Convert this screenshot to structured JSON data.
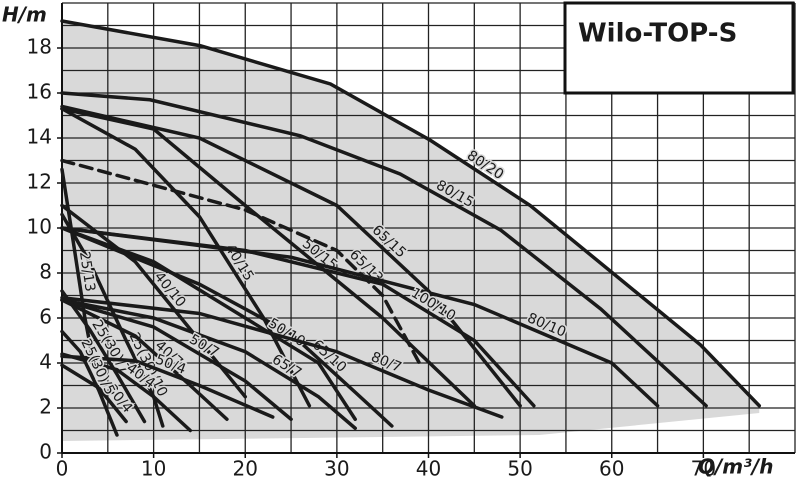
{
  "chart_data": {
    "type": "line",
    "title": "Wilo-TOP-S",
    "xlabel": "Q/m³/h",
    "ylabel": "H/m",
    "xlim": [
      0,
      80
    ],
    "ylim": [
      0,
      20
    ],
    "xticks": [
      0,
      10,
      20,
      30,
      40,
      50,
      60,
      70
    ],
    "yticks": [
      0,
      2,
      4,
      6,
      8,
      10,
      12,
      14,
      16,
      18
    ],
    "xgrid": [
      0,
      5,
      10,
      15,
      20,
      25,
      30,
      35,
      40,
      45,
      50,
      55,
      60,
      65,
      70,
      75,
      80
    ],
    "ygrid": [
      0,
      1,
      2,
      3,
      4,
      5,
      6,
      7,
      8,
      9,
      10,
      11,
      12,
      13,
      14,
      15,
      16,
      17,
      18,
      19,
      20
    ],
    "grid": true,
    "color": "#1a1a1a",
    "fill_color": "#d9d9d9",
    "series": [
      {
        "name": "80/20",
        "x": [
          0,
          15.1,
          29.3,
          40.2,
          51.1,
          61,
          69.7,
          76.1
        ],
        "values": [
          19.2,
          18.1,
          16.4,
          13.9,
          11,
          7.7,
          4.8,
          2.1
        ]
      },
      {
        "name": "80/15",
        "x": [
          0,
          9.6,
          26,
          36.9,
          47.9,
          58.8,
          70.3
        ],
        "values": [
          16.0,
          15.7,
          14.1,
          12.4,
          9.9,
          6.4,
          2.1
        ]
      },
      {
        "name": "65/15",
        "x": [
          0,
          15,
          30,
          40,
          50
        ],
        "values": [
          15.4,
          14,
          11,
          7.2,
          2.1
        ]
      },
      {
        "name": "50/15",
        "x": [
          0,
          10,
          20,
          35,
          45
        ],
        "values": [
          15.3,
          14.4,
          11,
          6,
          2.1
        ]
      },
      {
        "name": "40/15",
        "x": [
          0,
          8,
          15,
          22,
          27
        ],
        "values": [
          15.3,
          13.5,
          10.5,
          6,
          2.1
        ]
      },
      {
        "name": "65/13",
        "dashed": true,
        "x": [
          0,
          20,
          30,
          35,
          39
        ],
        "values": [
          13,
          10.8,
          9,
          7,
          4
        ]
      },
      {
        "name": "80/10",
        "x": [
          0,
          25,
          45,
          60,
          65
        ],
        "values": [
          10,
          8.7,
          6.6,
          4,
          2.1
        ]
      },
      {
        "name": "100/10",
        "x": [
          0,
          20,
          35,
          45,
          51.5
        ],
        "values": [
          10,
          9,
          7.5,
          5,
          2.1
        ]
      },
      {
        "name": "65/10",
        "x": [
          0,
          15,
          25,
          32,
          36
        ],
        "values": [
          10,
          7.5,
          5.3,
          2.7,
          1.2
        ]
      },
      {
        "name": "50/10",
        "x": [
          0,
          10,
          20,
          28,
          32
        ],
        "values": [
          10,
          8.5,
          6,
          4,
          1.5
        ]
      },
      {
        "name": "40/10",
        "x": [
          0,
          8,
          14,
          20
        ],
        "values": [
          11,
          8.5,
          5.5,
          2.5
        ]
      },
      {
        "name": "25(30)/10",
        "x": [
          0,
          3,
          7,
          10,
          11
        ],
        "values": [
          10.6,
          8.5,
          5,
          2.5,
          1.2
        ]
      },
      {
        "name": "80/7",
        "x": [
          0,
          15,
          30,
          40,
          48
        ],
        "values": [
          6.9,
          6.2,
          4.5,
          2.8,
          1.6
        ]
      },
      {
        "name": "65/7",
        "x": [
          0,
          10,
          20,
          28,
          32
        ],
        "values": [
          6.8,
          6,
          4.5,
          2.5,
          1.1
        ]
      },
      {
        "name": "50/7",
        "x": [
          0,
          10,
          20,
          25
        ],
        "values": [
          6.8,
          5.6,
          3.2,
          1.5
        ]
      },
      {
        "name": "40/7",
        "x": [
          0,
          8,
          14,
          18
        ],
        "values": [
          6.8,
          5.2,
          3,
          1.5
        ]
      },
      {
        "name": "25(30)/7",
        "x": [
          0,
          3,
          6,
          9
        ],
        "values": [
          7.2,
          5.5,
          3.5,
          1.4
        ]
      },
      {
        "name": "25/13",
        "x": [
          0,
          1,
          2.5,
          3.5
        ],
        "values": [
          12.6,
          10,
          6,
          3.9
        ]
      },
      {
        "name": "50/4",
        "x": [
          0,
          8,
          15,
          23
        ],
        "values": [
          4.3,
          4.1,
          3,
          1.6
        ]
      },
      {
        "name": "40/4",
        "x": [
          0,
          6,
          10,
          14
        ],
        "values": [
          4.4,
          3.7,
          2.5,
          1
        ]
      },
      {
        "name": "30/4",
        "x": [
          0,
          4,
          7
        ],
        "values": [
          3.9,
          2.9,
          1.4
        ]
      },
      {
        "name": "25(30)/5",
        "x": [
          0,
          2,
          4,
          6
        ],
        "values": [
          5.4,
          4.5,
          2.8,
          0.8
        ]
      }
    ]
  }
}
